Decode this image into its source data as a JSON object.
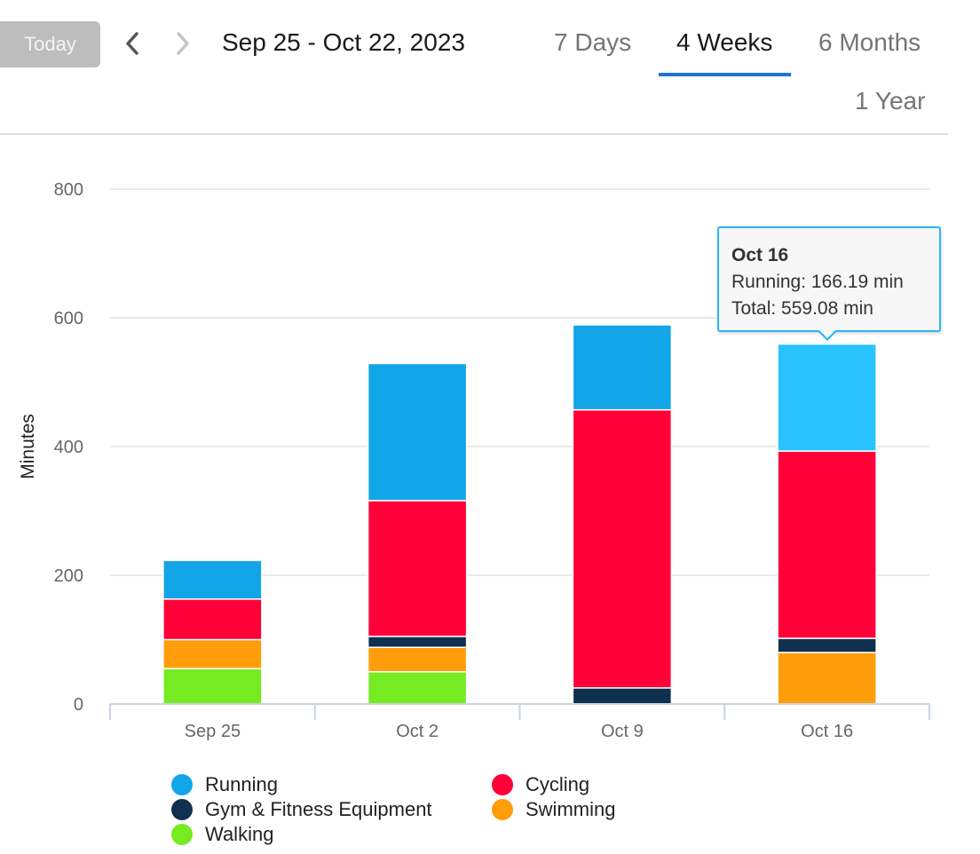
{
  "header": {
    "today_label": "Today",
    "date_range": "Sep 25 - Oct 22, 2023",
    "tabs": [
      {
        "label": "7 Days",
        "active": false
      },
      {
        "label": "4 Weeks",
        "active": true
      },
      {
        "label": "6 Months",
        "active": false
      },
      {
        "label": "1 Year",
        "active": false
      }
    ],
    "prev_icon": "chevron-left-icon",
    "next_icon": "chevron-right-icon",
    "accent_color": "#1976d2"
  },
  "tooltip": {
    "title": "Oct 16",
    "line1": "Running: 166.19 min",
    "line2": "Total: 559.08 min"
  },
  "chart_data": {
    "type": "bar",
    "stacked": true,
    "ylabel": "Minutes",
    "xlabel": "",
    "ylim": [
      0,
      800
    ],
    "yticks": [
      0,
      200,
      400,
      600,
      800
    ],
    "grid": true,
    "legend_position": "bottom",
    "categories": [
      "Sep 25",
      "Oct 2",
      "Oct 9",
      "Oct 16"
    ],
    "series": [
      {
        "name": "Walking",
        "color": "#76eb21",
        "values": [
          55,
          50,
          0,
          0
        ]
      },
      {
        "name": "Swimming",
        "color": "#ff9d0a",
        "values": [
          45,
          38,
          0,
          80
        ]
      },
      {
        "name": "Gym & Fitness Equipment",
        "color": "#10304f",
        "values": [
          0,
          17,
          25,
          22
        ]
      },
      {
        "name": "Cycling",
        "color": "#ff0038",
        "values": [
          63,
          211,
          432,
          291
        ]
      },
      {
        "name": "Running",
        "color": "#12a5e8",
        "values": [
          60,
          213,
          132,
          166.19
        ]
      }
    ],
    "highlighted_category": "Oct 16",
    "highlight_color": "#29c3ff"
  },
  "legend_order": [
    "Running",
    "Cycling",
    "Gym & Fitness Equipment",
    "Swimming",
    "Walking"
  ]
}
